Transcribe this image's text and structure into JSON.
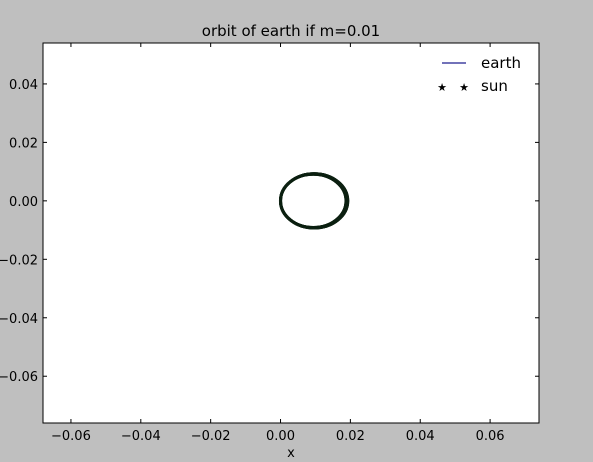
{
  "chart_data": {
    "type": "line",
    "title": "orbit of earth if m=0.01",
    "xlabel": "x",
    "ylabel": "",
    "xlim": [
      -0.068,
      0.074
    ],
    "ylim": [
      -0.076,
      0.054
    ],
    "xticks": [
      -0.06,
      -0.04,
      -0.02,
      0.0,
      0.02,
      0.04,
      0.06
    ],
    "xtick_labels": [
      "−0.06",
      "−0.04",
      "−0.02",
      "0.00",
      "0.02",
      "0.04",
      "0.06"
    ],
    "yticks": [
      0.04,
      0.02,
      0.0,
      -0.02,
      -0.04,
      -0.06
    ],
    "ytick_labels": [
      "0.04",
      "0.02",
      "0.00",
      "−0.02",
      "−0.04",
      "−0.06"
    ],
    "grid": false,
    "legend_position": "top-right",
    "series": [
      {
        "name": "earth",
        "kind": "line",
        "color": "#1f1f8f",
        "center": [
          0.0095,
          0.0
        ],
        "radius_x": 0.0095,
        "radius_y": 0.0092,
        "loops": 40,
        "drift": 0.0008
      },
      {
        "name": "sun",
        "kind": "marker",
        "marker": "star",
        "color": "#000000",
        "x": [],
        "y": []
      }
    ]
  },
  "colors": {
    "figure_background": "#bfbfbf",
    "axes_background": "#ffffff",
    "orbit_trace": "#0d2112"
  }
}
